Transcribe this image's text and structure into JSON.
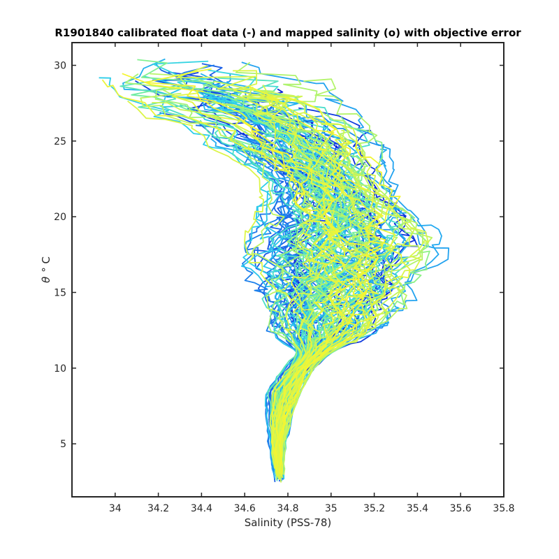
{
  "chart_data": {
    "type": "line",
    "title": "R1901840 calibrated float data (-) and mapped salinity (o) with objective error",
    "xlabel": "Salinity (PSS-78)",
    "ylabel_symbol": "θ",
    "ylabel_unit": "° C",
    "xlim": [
      33.8,
      35.8
    ],
    "ylim": [
      1.5,
      31.5
    ],
    "xticks": [
      34,
      34.2,
      34.4,
      34.6,
      34.8,
      35,
      35.2,
      35.4,
      35.6,
      35.8
    ],
    "xtick_labels": [
      "34",
      "34.2",
      "34.4",
      "34.6",
      "34.8",
      "35",
      "35.2",
      "35.4",
      "35.6",
      "35.8"
    ],
    "yticks": [
      5,
      10,
      15,
      20,
      25,
      30
    ],
    "ytick_labels": [
      "5",
      "10",
      "15",
      "20",
      "25",
      "30"
    ],
    "grid": false,
    "colormap": [
      "#0a1fd8",
      "#1a64e8",
      "#22a8f0",
      "#2fd2e8",
      "#78f09a",
      "#c8f55a",
      "#f5f531"
    ],
    "profile_count": 120,
    "envelope": [
      {
        "theta": 2.6,
        "s_min": 34.72,
        "s_max": 34.8,
        "center": 34.76
      },
      {
        "theta": 5.0,
        "s_min": 34.7,
        "s_max": 34.8,
        "center": 34.75
      },
      {
        "theta": 7.0,
        "s_min": 34.66,
        "s_max": 34.82,
        "center": 34.77
      },
      {
        "theta": 8.5,
        "s_min": 34.64,
        "s_max": 34.86,
        "center": 34.8
      },
      {
        "theta": 10.0,
        "s_min": 34.74,
        "s_max": 34.92,
        "center": 34.86
      },
      {
        "theta": 11.0,
        "s_min": 34.82,
        "s_max": 35.0,
        "center": 34.92
      },
      {
        "theta": 12.5,
        "s_min": 34.6,
        "s_max": 35.2,
        "center": 34.98
      },
      {
        "theta": 15.0,
        "s_min": 34.55,
        "s_max": 35.45,
        "center": 35.02
      },
      {
        "theta": 17.5,
        "s_min": 34.6,
        "s_max": 35.65,
        "center": 35.05
      },
      {
        "theta": 20.0,
        "s_min": 34.6,
        "s_max": 35.45,
        "center": 35.05
      },
      {
        "theta": 22.5,
        "s_min": 34.65,
        "s_max": 35.3,
        "center": 34.98
      },
      {
        "theta": 25.0,
        "s_min": 34.35,
        "s_max": 35.3,
        "center": 34.85
      },
      {
        "theta": 27.5,
        "s_min": 34.05,
        "s_max": 35.1,
        "center": 34.65
      },
      {
        "theta": 29.5,
        "s_min": 33.92,
        "s_max": 35.0,
        "center": 34.55
      }
    ]
  }
}
